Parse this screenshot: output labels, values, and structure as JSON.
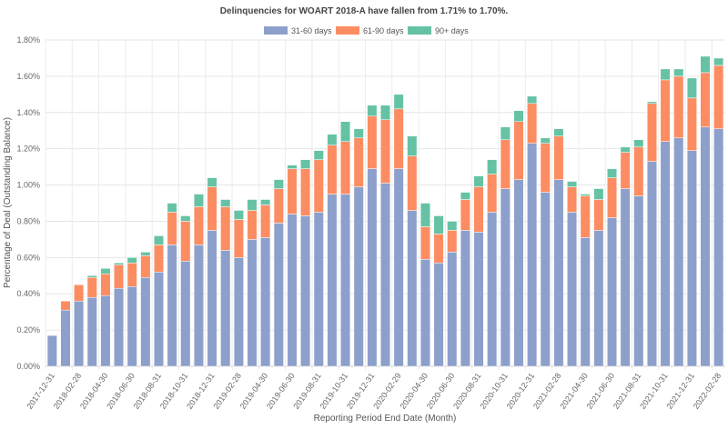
{
  "chart_data": {
    "type": "bar",
    "stacked": true,
    "title": "Delinquencies for WOART 2018-A have fallen from 1.71% to 1.70%.",
    "xlabel": "Reporting Period End Date (Month)",
    "ylabel": "Percentage of Deal (Outstanding Balance)",
    "ylim": [
      0,
      1.8
    ],
    "y_ticks": [
      "0.00%",
      "0.20%",
      "0.40%",
      "0.60%",
      "0.80%",
      "1.00%",
      "1.20%",
      "1.40%",
      "1.60%",
      "1.80%"
    ],
    "grid": true,
    "legend_position": "top",
    "categories": [
      "2017-12-31",
      "2018-01-31",
      "2018-02-28",
      "2018-03-31",
      "2018-04-30",
      "2018-05-31",
      "2018-06-30",
      "2018-07-31",
      "2018-08-31",
      "2018-09-30",
      "2018-10-31",
      "2018-11-30",
      "2018-12-31",
      "2019-01-31",
      "2019-02-28",
      "2019-03-31",
      "2019-04-30",
      "2019-05-31",
      "2019-06-30",
      "2019-07-31",
      "2019-08-31",
      "2019-09-30",
      "2019-10-31",
      "2019-11-30",
      "2019-12-31",
      "2020-01-31",
      "2020-02-29",
      "2020-03-31",
      "2020-04-30",
      "2020-05-31",
      "2020-06-30",
      "2020-07-31",
      "2020-08-31",
      "2020-09-30",
      "2020-10-31",
      "2020-11-30",
      "2020-12-31",
      "2021-01-31",
      "2021-02-28",
      "2021-03-31",
      "2021-04-30",
      "2021-05-31",
      "2021-06-30",
      "2021-07-31",
      "2021-08-31",
      "2021-09-30",
      "2021-10-31",
      "2021-11-30",
      "2021-12-31",
      "2022-01-31",
      "2022-02-28"
    ],
    "series": [
      {
        "name": "31-60 days",
        "color": "#8da0cb",
        "values": [
          0.17,
          0.31,
          0.36,
          0.38,
          0.39,
          0.43,
          0.44,
          0.49,
          0.52,
          0.67,
          0.58,
          0.67,
          0.75,
          0.64,
          0.6,
          0.7,
          0.71,
          0.79,
          0.84,
          0.83,
          0.85,
          0.95,
          0.95,
          0.99,
          1.09,
          1.01,
          1.09,
          0.86,
          0.59,
          0.57,
          0.63,
          0.75,
          0.74,
          0.85,
          0.98,
          1.03,
          1.23,
          0.96,
          1.03,
          0.85,
          0.71,
          0.75,
          0.82,
          0.98,
          0.94,
          1.13,
          1.24,
          1.26,
          1.19,
          1.32,
          1.31
        ]
      },
      {
        "name": "61-90 days",
        "color": "#fc8d62",
        "values": [
          0,
          0.05,
          0.09,
          0.11,
          0.12,
          0.13,
          0.13,
          0.12,
          0.15,
          0.18,
          0.22,
          0.21,
          0.24,
          0.24,
          0.21,
          0.16,
          0.18,
          0.19,
          0.25,
          0.26,
          0.29,
          0.27,
          0.29,
          0.27,
          0.29,
          0.35,
          0.33,
          0.3,
          0.18,
          0.16,
          0.12,
          0.17,
          0.25,
          0.21,
          0.27,
          0.32,
          0.22,
          0.27,
          0.24,
          0.14,
          0.23,
          0.17,
          0.22,
          0.2,
          0.27,
          0.32,
          0.34,
          0.34,
          0.29,
          0.3,
          0.35
        ]
      },
      {
        "name": "90+ days",
        "color": "#66c2a5",
        "values": [
          0,
          0,
          0,
          0.01,
          0.03,
          0.01,
          0.03,
          0.02,
          0.05,
          0.05,
          0.03,
          0.07,
          0.05,
          0.04,
          0.05,
          0.06,
          0.03,
          0.05,
          0.02,
          0.05,
          0.05,
          0.06,
          0.11,
          0.05,
          0.06,
          0.08,
          0.08,
          0.11,
          0.13,
          0.1,
          0.05,
          0.04,
          0.06,
          0.08,
          0.07,
          0.06,
          0.04,
          0.03,
          0.04,
          0.03,
          0.01,
          0.06,
          0.05,
          0.03,
          0.04,
          0.01,
          0.06,
          0.04,
          0.11,
          0.09,
          0.04
        ]
      }
    ]
  }
}
